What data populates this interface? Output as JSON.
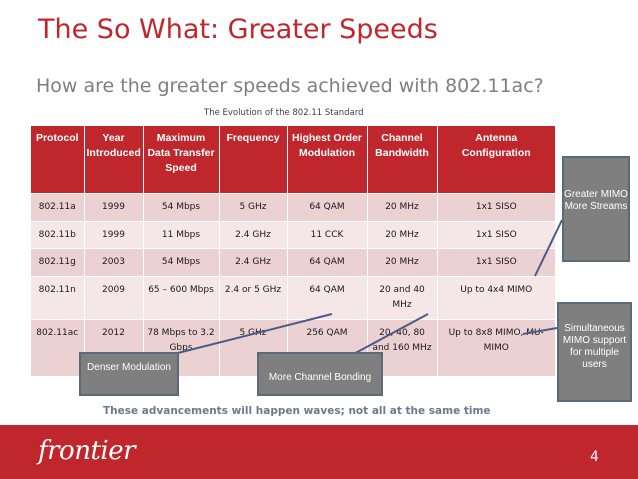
{
  "slide": {
    "title": "The So What:  Greater Speeds",
    "subtitle": "How are the greater speeds achieved with 802.11ac?",
    "caption": "The Evolution of the 802.11 Standard",
    "footnote": "These advancements will happen waves; not all at the same time",
    "logo": "frontier",
    "page_number": "4"
  },
  "table": {
    "headers": [
      "Protocol",
      "Year Introduced",
      "Maximum Data Transfer Speed",
      "Frequency",
      "Highest Order Modulation",
      "Channel Bandwidth",
      "Antenna Configuration"
    ],
    "rows": [
      [
        "802.11a",
        "1999",
        "54 Mbps",
        "5 GHz",
        "64 QAM",
        "20 MHz",
        "1x1 SISO"
      ],
      [
        "802.11b",
        "1999",
        "11 Mbps",
        "2.4 GHz",
        "11 CCK",
        "20 MHz",
        "1x1 SISO"
      ],
      [
        "802.11g",
        "2003",
        "54 Mbps",
        "2.4 GHz",
        "64 QAM",
        "20 MHz",
        "1x1 SISO"
      ],
      [
        "802.11n",
        "2009",
        "65 – 600 Mbps",
        "2.4 or 5 GHz",
        "64 QAM",
        "20 and 40 MHz",
        "Up to 4x4 MIMO"
      ],
      [
        "802.11ac",
        "2012",
        "78 Mbps to 3.2 Gbps",
        "5 GHz",
        "256 QAM",
        "20, 40, 80 and 160 MHz",
        "Up to 8x8 MIMO, MU-MIMO"
      ]
    ]
  },
  "callouts": {
    "mimo": "Greater MIMO More Streams",
    "simultaneous": "Simultaneous MIMO support for multiple users",
    "denser": "Denser Modulation",
    "bonding": "More Channel Bonding"
  },
  "colors": {
    "accent": "#c0272d",
    "row_dark": "#ebd1d1",
    "row_light": "#f5e7e7",
    "callout": "#7f7f7f",
    "subtitle": "#7f7f7f",
    "footnote": "#6b7a8f"
  }
}
